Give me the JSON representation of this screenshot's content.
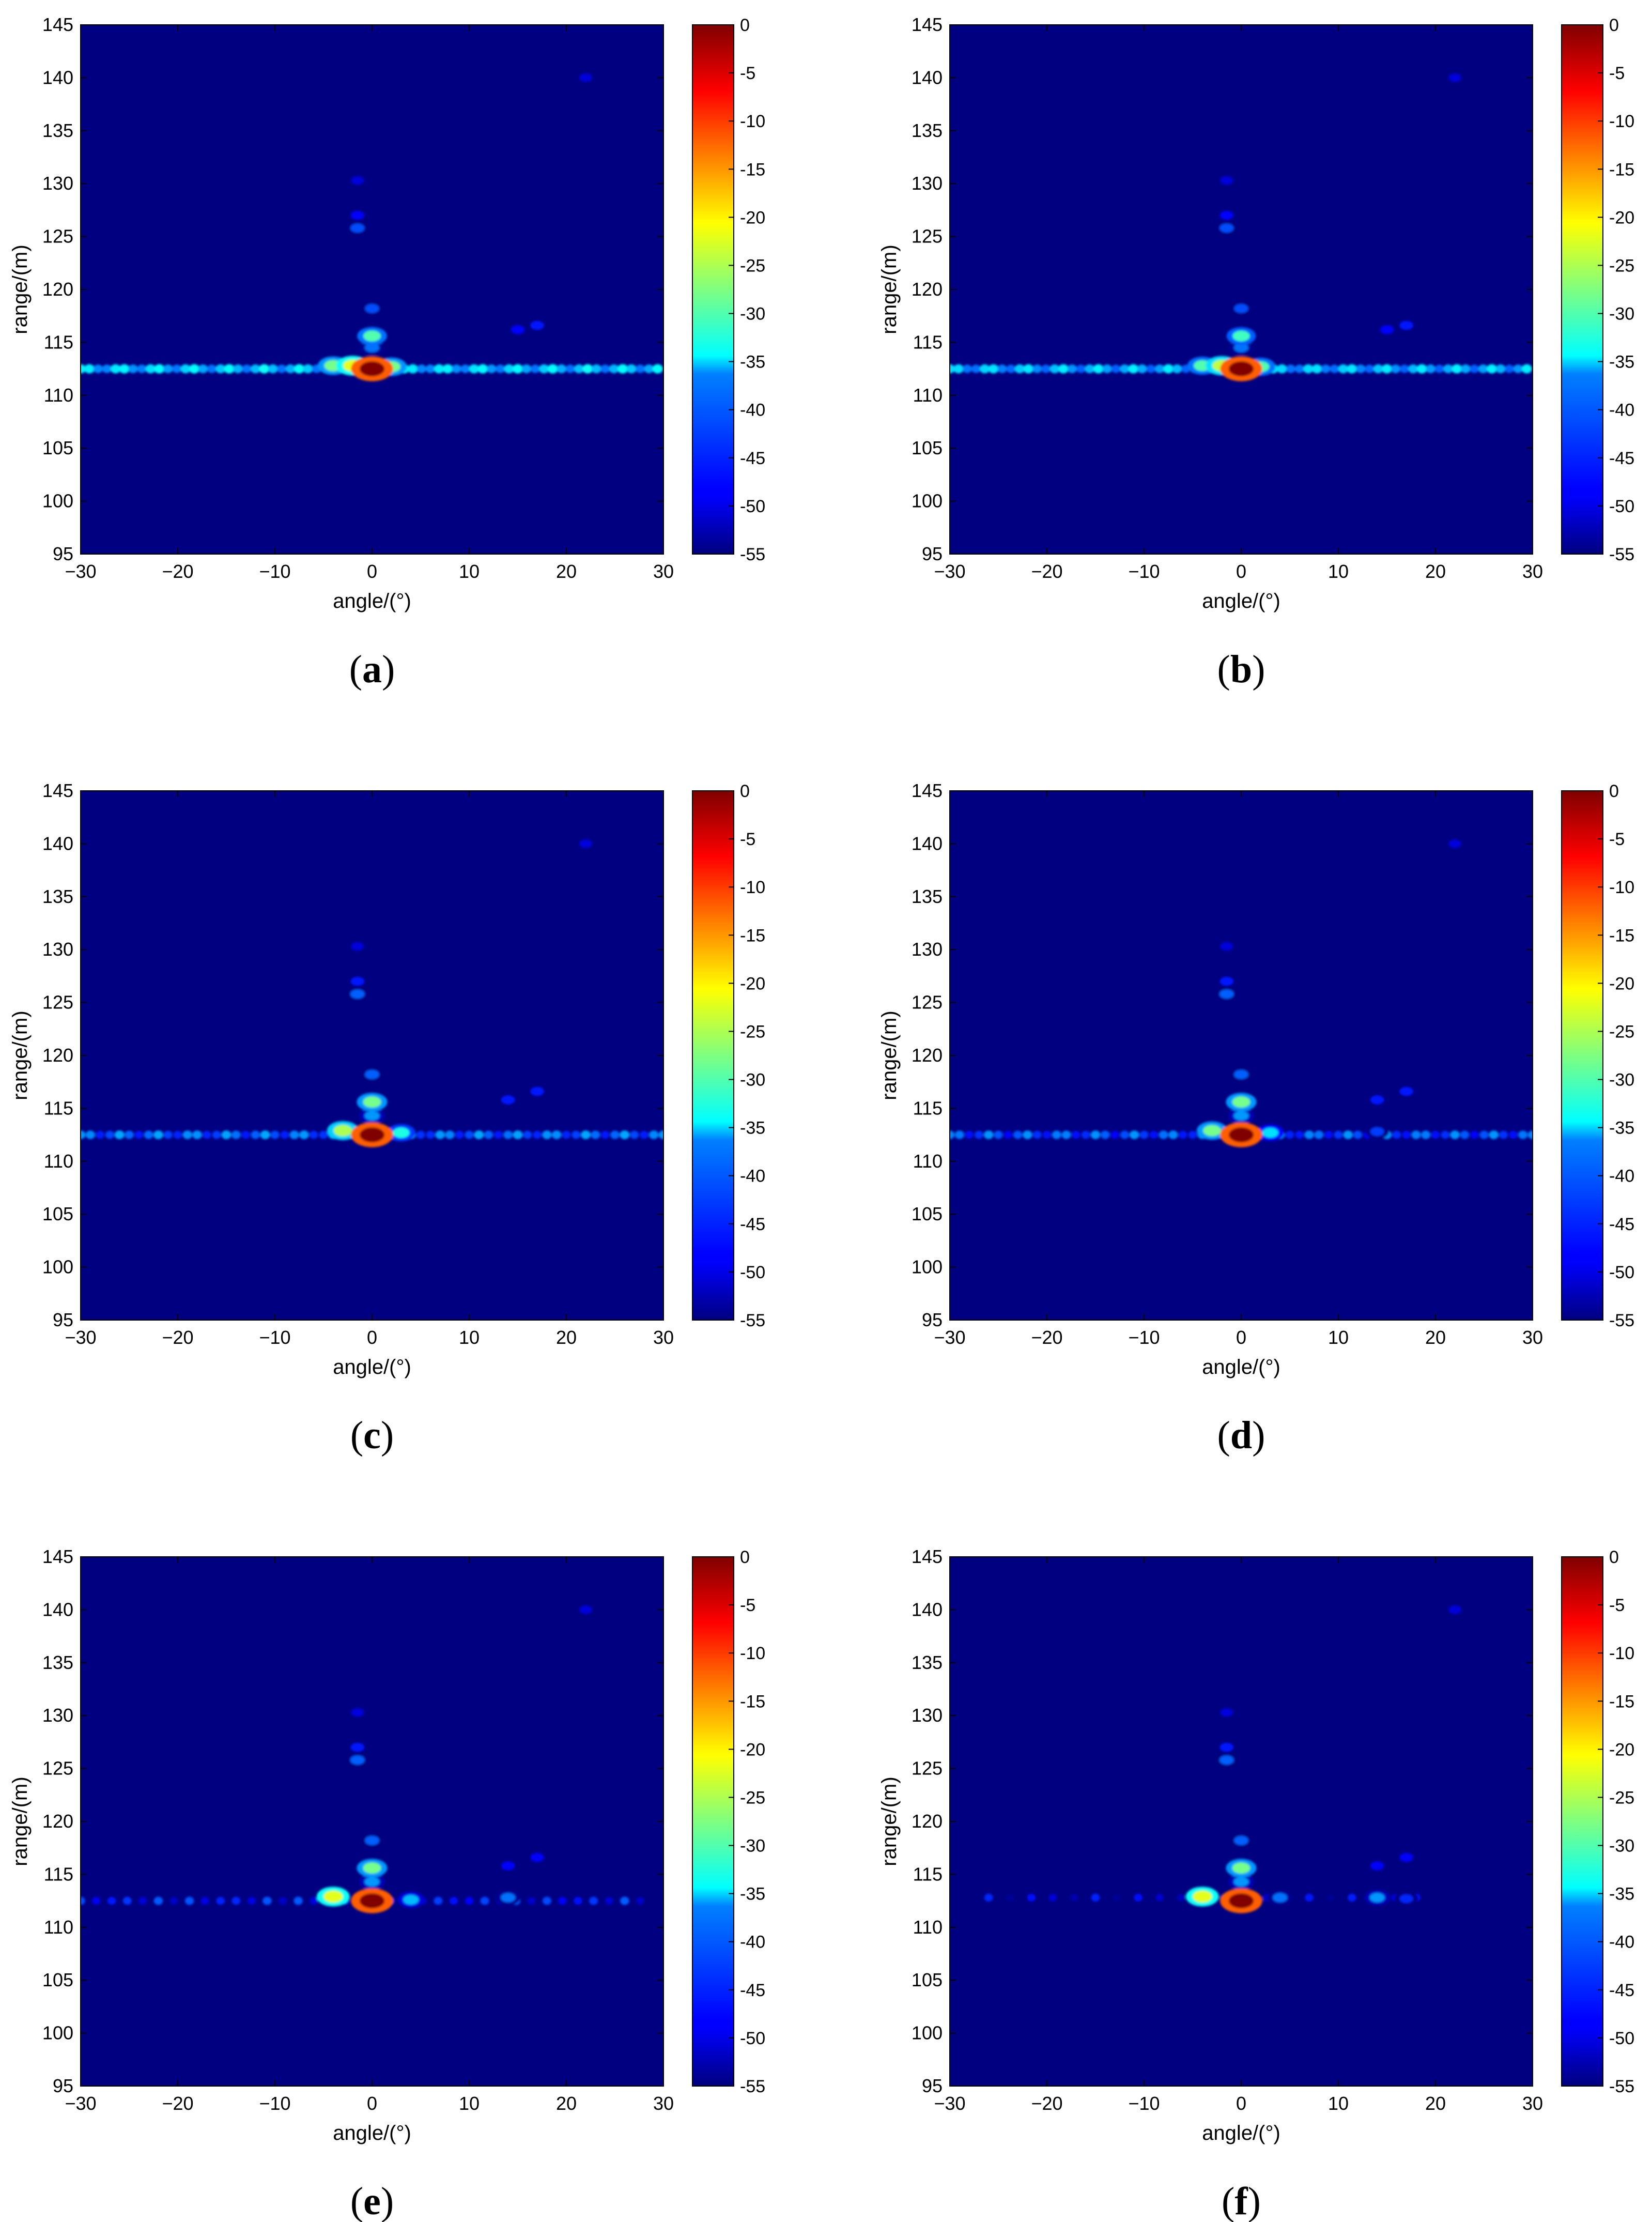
{
  "figure": {
    "panels": [
      {
        "id": "a",
        "caption_letter": "a",
        "row": 0,
        "col": 0
      },
      {
        "id": "b",
        "caption_letter": "b",
        "row": 0,
        "col": 1
      },
      {
        "id": "c",
        "caption_letter": "c",
        "row": 1,
        "col": 0
      },
      {
        "id": "d",
        "caption_letter": "d",
        "row": 1,
        "col": 1
      },
      {
        "id": "e",
        "caption_letter": "e",
        "row": 2,
        "col": 0
      },
      {
        "id": "f",
        "caption_letter": "f",
        "row": 2,
        "col": 1
      }
    ]
  },
  "chart_data": [
    {
      "type": "heatmap",
      "panel": "a",
      "xlabel": "angle/(°)",
      "ylabel": "range/(m)",
      "xlim": [
        -30,
        30
      ],
      "ylim": [
        95,
        145
      ],
      "xticks": [
        -30,
        -20,
        -10,
        0,
        10,
        20,
        30
      ],
      "yticks": [
        95,
        100,
        105,
        110,
        115,
        120,
        125,
        130,
        135,
        140,
        145
      ],
      "colorbar": {
        "range": [
          -55,
          0
        ],
        "ticks": [
          0,
          -5,
          -10,
          -15,
          -20,
          -25,
          -30,
          -35,
          -40,
          -45,
          -50,
          -55
        ],
        "colormap": "jet"
      },
      "background_db": -55,
      "sidelobe_line": {
        "range_m": 112.5,
        "angle_from": -30,
        "angle_to": 30,
        "level_db": -38,
        "spacing_deg": 0.9
      },
      "hotspots": [
        {
          "angle": 0,
          "range": 112.5,
          "db": 0
        },
        {
          "angle": -2,
          "range": 112.8,
          "db": -22
        },
        {
          "angle": -4,
          "range": 112.8,
          "db": -28
        },
        {
          "angle": 2,
          "range": 112.7,
          "db": -28
        },
        {
          "angle": 0,
          "range": 115.6,
          "db": -30
        },
        {
          "angle": 0,
          "range": 114.5,
          "db": -42
        },
        {
          "angle": 0,
          "range": 118.2,
          "db": -44
        },
        {
          "angle": -1.5,
          "range": 125.8,
          "db": -44
        },
        {
          "angle": -1.5,
          "range": 127.0,
          "db": -48
        },
        {
          "angle": -1.5,
          "range": 130.3,
          "db": -50
        },
        {
          "angle": 15,
          "range": 116.2,
          "db": -48
        },
        {
          "angle": 17,
          "range": 116.6,
          "db": -47
        },
        {
          "angle": 22,
          "range": 140.0,
          "db": -50
        }
      ]
    },
    {
      "type": "heatmap",
      "panel": "b",
      "xlabel": "angle/(°)",
      "ylabel": "range/(m)",
      "xlim": [
        -30,
        30
      ],
      "ylim": [
        95,
        145
      ],
      "xticks": [
        -30,
        -20,
        -10,
        0,
        10,
        20,
        30
      ],
      "yticks": [
        95,
        100,
        105,
        110,
        115,
        120,
        125,
        130,
        135,
        140,
        145
      ],
      "colorbar": {
        "range": [
          -55,
          0
        ],
        "ticks": [
          0,
          -5,
          -10,
          -15,
          -20,
          -25,
          -30,
          -35,
          -40,
          -45,
          -50,
          -55
        ],
        "colormap": "jet"
      },
      "background_db": -55,
      "sidelobe_line": {
        "range_m": 112.5,
        "angle_from": -30,
        "angle_to": 30,
        "level_db": -39,
        "spacing_deg": 0.9
      },
      "hotspots": [
        {
          "angle": 0,
          "range": 112.5,
          "db": 0
        },
        {
          "angle": -2,
          "range": 112.8,
          "db": -24
        },
        {
          "angle": -4,
          "range": 112.8,
          "db": -30
        },
        {
          "angle": 2,
          "range": 112.7,
          "db": -30
        },
        {
          "angle": 0,
          "range": 115.6,
          "db": -31
        },
        {
          "angle": 0,
          "range": 114.5,
          "db": -42
        },
        {
          "angle": 0,
          "range": 118.2,
          "db": -44
        },
        {
          "angle": -1.5,
          "range": 125.8,
          "db": -44
        },
        {
          "angle": -1.5,
          "range": 127.0,
          "db": -48
        },
        {
          "angle": -1.5,
          "range": 130.3,
          "db": -50
        },
        {
          "angle": 15,
          "range": 116.2,
          "db": -48
        },
        {
          "angle": 17,
          "range": 116.6,
          "db": -47
        },
        {
          "angle": 22,
          "range": 140.0,
          "db": -50
        }
      ]
    },
    {
      "type": "heatmap",
      "panel": "c",
      "xlabel": "angle/(°)",
      "ylabel": "range/(m)",
      "xlim": [
        -30,
        30
      ],
      "ylim": [
        95,
        145
      ],
      "xticks": [
        -30,
        -20,
        -10,
        0,
        10,
        20,
        30
      ],
      "yticks": [
        95,
        100,
        105,
        110,
        115,
        120,
        125,
        130,
        135,
        140,
        145
      ],
      "colorbar": {
        "range": [
          -55,
          0
        ],
        "ticks": [
          0,
          -5,
          -10,
          -15,
          -20,
          -25,
          -30,
          -35,
          -40,
          -45,
          -50,
          -55
        ],
        "colormap": "jet"
      },
      "background_db": -55,
      "sidelobe_line": {
        "range_m": 112.5,
        "angle_from": -30,
        "angle_to": 30,
        "level_db": -43,
        "spacing_deg": 1.0
      },
      "hotspots": [
        {
          "angle": 0,
          "range": 112.5,
          "db": 0
        },
        {
          "angle": -3,
          "range": 112.9,
          "db": -25
        },
        {
          "angle": 3,
          "range": 112.7,
          "db": -33
        },
        {
          "angle": 0,
          "range": 115.6,
          "db": -28
        },
        {
          "angle": 0,
          "range": 114.3,
          "db": -40
        },
        {
          "angle": 0,
          "range": 118.2,
          "db": -43
        },
        {
          "angle": -1.5,
          "range": 125.8,
          "db": -43
        },
        {
          "angle": -1.5,
          "range": 127.0,
          "db": -47
        },
        {
          "angle": -1.5,
          "range": 130.3,
          "db": -50
        },
        {
          "angle": 14,
          "range": 115.8,
          "db": -47
        },
        {
          "angle": 17,
          "range": 116.6,
          "db": -47
        },
        {
          "angle": 22,
          "range": 140.0,
          "db": -50
        }
      ]
    },
    {
      "type": "heatmap",
      "panel": "d",
      "xlabel": "angle/(°)",
      "ylabel": "range/(m)",
      "xlim": [
        -30,
        30
      ],
      "ylim": [
        95,
        145
      ],
      "xticks": [
        -30,
        -20,
        -10,
        0,
        10,
        20,
        30
      ],
      "yticks": [
        95,
        100,
        105,
        110,
        115,
        120,
        125,
        130,
        135,
        140,
        145
      ],
      "colorbar": {
        "range": [
          -55,
          0
        ],
        "ticks": [
          0,
          -5,
          -10,
          -15,
          -20,
          -25,
          -30,
          -35,
          -40,
          -45,
          -50,
          -55
        ],
        "colormap": "jet"
      },
      "background_db": -55,
      "sidelobe_line": {
        "range_m": 112.5,
        "angle_from": -30,
        "angle_to": 30,
        "level_db": -44,
        "spacing_deg": 1.0
      },
      "hotspots": [
        {
          "angle": 0,
          "range": 112.5,
          "db": 0
        },
        {
          "angle": -3,
          "range": 112.9,
          "db": -28
        },
        {
          "angle": 3,
          "range": 112.7,
          "db": -36
        },
        {
          "angle": 0,
          "range": 115.6,
          "db": -28
        },
        {
          "angle": 0,
          "range": 114.3,
          "db": -40
        },
        {
          "angle": 0,
          "range": 118.2,
          "db": -43
        },
        {
          "angle": -1.5,
          "range": 125.8,
          "db": -43
        },
        {
          "angle": -1.5,
          "range": 127.0,
          "db": -47
        },
        {
          "angle": -1.5,
          "range": 130.3,
          "db": -50
        },
        {
          "angle": 14,
          "range": 115.8,
          "db": -47
        },
        {
          "angle": 14,
          "range": 112.8,
          "db": -45
        },
        {
          "angle": 17,
          "range": 116.6,
          "db": -47
        },
        {
          "angle": 22,
          "range": 140.0,
          "db": -50
        }
      ]
    },
    {
      "type": "heatmap",
      "panel": "e",
      "xlabel": "angle/(°)",
      "ylabel": "range/(m)",
      "xlim": [
        -30,
        30
      ],
      "ylim": [
        95,
        145
      ],
      "xticks": [
        -30,
        -20,
        -10,
        0,
        10,
        20,
        30
      ],
      "yticks": [
        95,
        100,
        105,
        110,
        115,
        120,
        125,
        130,
        135,
        140,
        145
      ],
      "colorbar": {
        "range": [
          -55,
          0
        ],
        "ticks": [
          0,
          -5,
          -10,
          -15,
          -20,
          -25,
          -30,
          -35,
          -40,
          -45,
          -50,
          -55
        ],
        "colormap": "jet"
      },
      "background_db": -55,
      "sidelobe_line": {
        "range_m": 112.5,
        "angle_from": -30,
        "angle_to": 28,
        "level_db": -47,
        "spacing_deg": 1.6
      },
      "hotspots": [
        {
          "angle": 0,
          "range": 112.5,
          "db": 0
        },
        {
          "angle": -4,
          "range": 112.9,
          "db": -22
        },
        {
          "angle": 4,
          "range": 112.6,
          "db": -38
        },
        {
          "angle": 0,
          "range": 115.6,
          "db": -28
        },
        {
          "angle": 0,
          "range": 114.3,
          "db": -40
        },
        {
          "angle": 0,
          "range": 118.2,
          "db": -43
        },
        {
          "angle": -1.5,
          "range": 125.8,
          "db": -43
        },
        {
          "angle": -1.5,
          "range": 127.0,
          "db": -47
        },
        {
          "angle": -1.5,
          "range": 130.3,
          "db": -50
        },
        {
          "angle": 14,
          "range": 112.8,
          "db": -42
        },
        {
          "angle": 14,
          "range": 115.8,
          "db": -48
        },
        {
          "angle": 17,
          "range": 116.6,
          "db": -48
        },
        {
          "angle": 22,
          "range": 140.0,
          "db": -50
        }
      ]
    },
    {
      "type": "heatmap",
      "panel": "f",
      "xlabel": "angle/(°)",
      "ylabel": "range/(m)",
      "xlim": [
        -30,
        30
      ],
      "ylim": [
        95,
        145
      ],
      "xticks": [
        -30,
        -20,
        -10,
        0,
        10,
        20,
        30
      ],
      "yticks": [
        95,
        100,
        105,
        110,
        115,
        120,
        125,
        130,
        135,
        140,
        145
      ],
      "colorbar": {
        "range": [
          -55,
          0
        ],
        "ticks": [
          0,
          -5,
          -10,
          -15,
          -20,
          -25,
          -30,
          -35,
          -40,
          -45,
          -50,
          -55
        ],
        "colormap": "jet"
      },
      "background_db": -55,
      "sidelobe_line": {
        "range_m": 112.8,
        "angle_from": -26,
        "angle_to": 20,
        "level_db": -50,
        "spacing_deg": 2.2
      },
      "hotspots": [
        {
          "angle": 0,
          "range": 112.5,
          "db": 0
        },
        {
          "angle": -4,
          "range": 112.9,
          "db": -22
        },
        {
          "angle": 4,
          "range": 112.8,
          "db": -42
        },
        {
          "angle": 0,
          "range": 115.6,
          "db": -28
        },
        {
          "angle": 0,
          "range": 114.3,
          "db": -40
        },
        {
          "angle": 0,
          "range": 118.2,
          "db": -43
        },
        {
          "angle": -1.5,
          "range": 125.8,
          "db": -43
        },
        {
          "angle": -1.5,
          "range": 127.0,
          "db": -47
        },
        {
          "angle": -1.5,
          "range": 130.3,
          "db": -50
        },
        {
          "angle": 14,
          "range": 112.8,
          "db": -40
        },
        {
          "angle": 14,
          "range": 115.8,
          "db": -48
        },
        {
          "angle": 17,
          "range": 112.7,
          "db": -46
        },
        {
          "angle": 17,
          "range": 116.6,
          "db": -48
        },
        {
          "angle": 22,
          "range": 140.0,
          "db": -50
        }
      ]
    }
  ]
}
